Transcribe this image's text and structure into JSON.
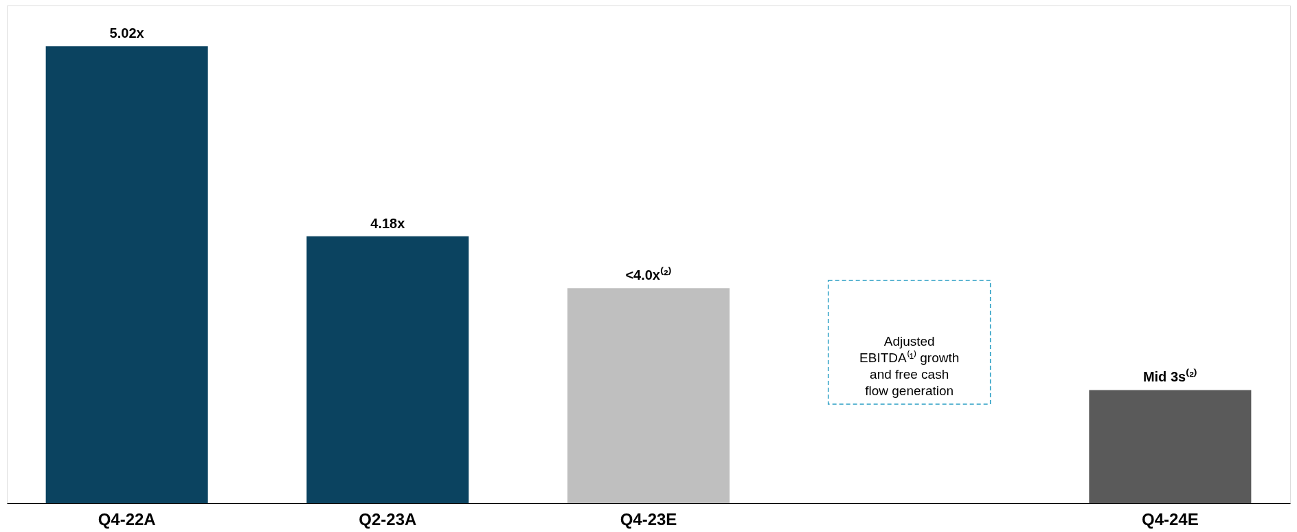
{
  "chart_data": {
    "type": "bar",
    "ylim": [
      3,
      5.2
    ],
    "tick_labels": "x",
    "categories": [
      "Q4-22A",
      "Q2-23A",
      "Q4-23E",
      null,
      "Q4-24E"
    ],
    "values": [
      5.02,
      4.18,
      3.95,
      null,
      3.5
    ],
    "colors": [
      "#0b4360",
      "#0b4360",
      "#bfbfbf",
      null,
      "#5a5a5a"
    ],
    "value_labels": [
      "5.02x",
      "4.18x",
      "<4.0x⁽²⁾",
      null,
      "Mid 3s⁽²⁾"
    ],
    "annotations": [
      "Adjusted EBITDA⁽¹⁾ growth and free cash flow generation"
    ],
    "grid": false
  }
}
